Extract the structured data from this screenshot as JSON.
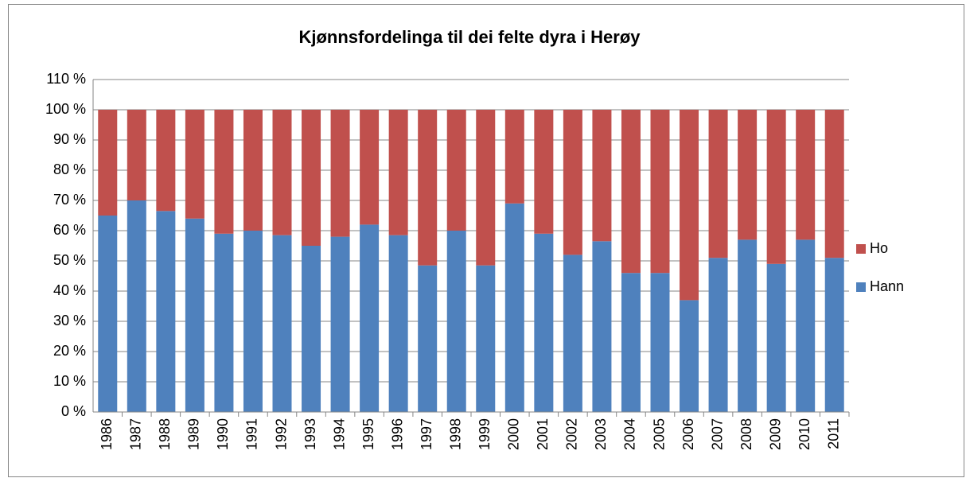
{
  "chart_data": {
    "type": "stacked_bar",
    "title": "Kjønnsfordelinga til dei felte dyra i Herøy",
    "categories": [
      "1986",
      "1987",
      "1988",
      "1989",
      "1990",
      "1991",
      "1992",
      "1993",
      "1994",
      "1995",
      "1996",
      "1997",
      "1998",
      "1999",
      "2000",
      "2001",
      "2002",
      "2003",
      "2004",
      "2005",
      "2006",
      "2007",
      "2008",
      "2009",
      "2010",
      "2011"
    ],
    "series": [
      {
        "name": "Hann",
        "color": "#4f81bd",
        "values": [
          65,
          70,
          66.5,
          64,
          59,
          60,
          58.5,
          55,
          58,
          62,
          58.5,
          48.5,
          60,
          48.5,
          69,
          59,
          52,
          56.5,
          46,
          46,
          37,
          51,
          57,
          49,
          57,
          51
        ]
      },
      {
        "name": "Ho",
        "color": "#c0504d",
        "values": [
          35,
          30,
          33.5,
          36,
          41,
          40,
          41.5,
          45,
          42,
          38,
          41.5,
          51.5,
          40,
          51.5,
          31,
          41,
          48,
          43.5,
          54,
          54,
          63,
          49,
          43,
          51,
          43,
          49
        ]
      }
    ],
    "ylim": [
      0,
      110
    ],
    "yticks": [
      {
        "value": 0,
        "label": "0 %"
      },
      {
        "value": 10,
        "label": "10 %"
      },
      {
        "value": 20,
        "label": "20 %"
      },
      {
        "value": 30,
        "label": "30 %"
      },
      {
        "value": 40,
        "label": "40 %"
      },
      {
        "value": 50,
        "label": "50 %"
      },
      {
        "value": 60,
        "label": "60 %"
      },
      {
        "value": 70,
        "label": "70 %"
      },
      {
        "value": 80,
        "label": "80 %"
      },
      {
        "value": 90,
        "label": "90 %"
      },
      {
        "value": 100,
        "label": "100 %"
      },
      {
        "value": 110,
        "label": "110 %"
      }
    ],
    "grid": true,
    "legend": "right"
  }
}
